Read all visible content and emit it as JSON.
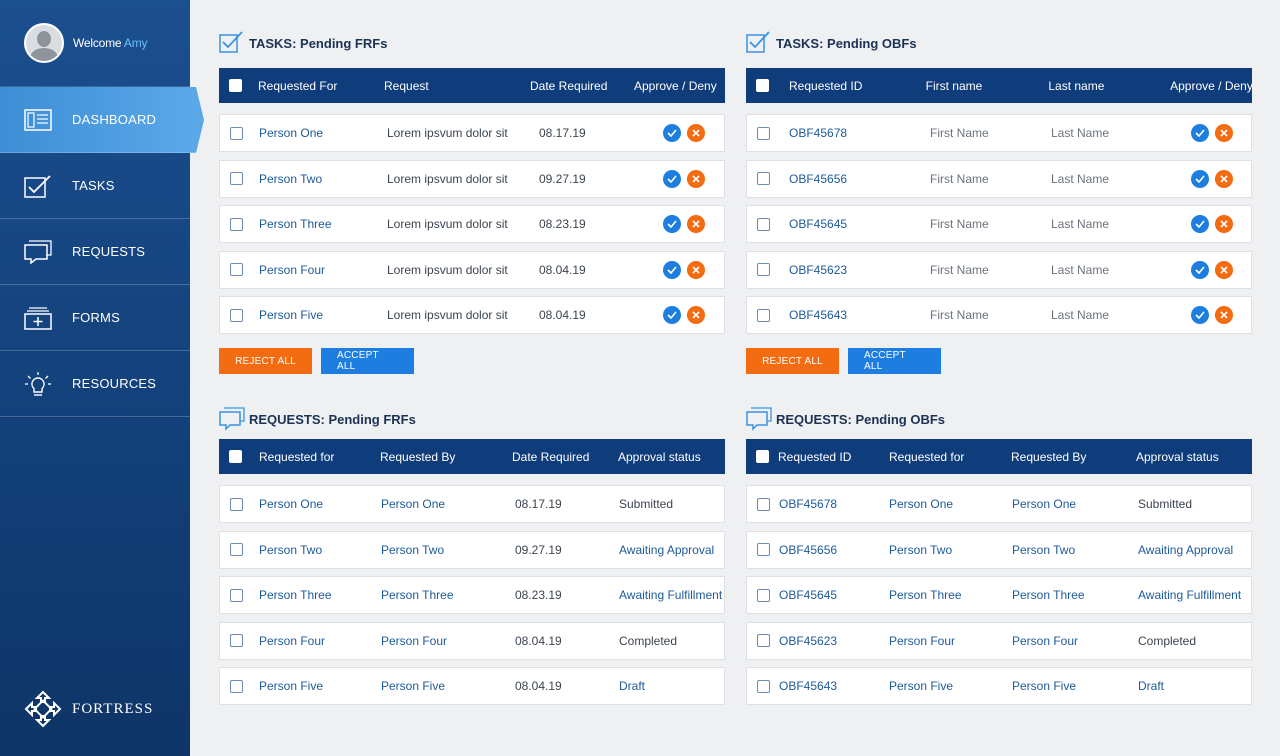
{
  "user": {
    "welcome": "Welcome",
    "name": "Amy"
  },
  "nav": [
    {
      "label": "DASHBOARD",
      "icon": "dashboard-icon",
      "active": true
    },
    {
      "label": "TASKS",
      "icon": "tasks-icon"
    },
    {
      "label": "REQUESTS",
      "icon": "requests-icon"
    },
    {
      "label": "FORMS",
      "icon": "forms-icon"
    },
    {
      "label": "RESOURCES",
      "icon": "lightbulb-icon"
    }
  ],
  "brand": "FORTRESS",
  "tasks_frf": {
    "title": "TASKS: Pending FRFs",
    "headers": [
      "Requested For",
      "Request",
      "Date Required",
      "Approve / Deny"
    ],
    "rows": [
      [
        "Person One",
        "Lorem ipsvum dolor sit",
        "08.17.19"
      ],
      [
        "Person Two",
        "Lorem ipsvum dolor sit",
        "09.27.19"
      ],
      [
        "Person Three",
        "Lorem ipsvum dolor sit",
        "08.23.19"
      ],
      [
        "Person Four",
        "Lorem ipsvum dolor sit",
        "08.04.19"
      ],
      [
        "Person Five",
        "Lorem ipsvum dolor sit",
        "08.04.19"
      ]
    ],
    "reject_label": "REJECT ALL",
    "accept_label": "ACCEPT ALL"
  },
  "tasks_obf": {
    "title": "TASKS: Pending OBFs",
    "headers": [
      "Requested ID",
      "First name",
      "Last name",
      "Approve / Deny"
    ],
    "rows": [
      [
        "OBF45678",
        "First Name",
        "Last Name"
      ],
      [
        "OBF45656",
        "First Name",
        "Last Name"
      ],
      [
        "OBF45645",
        "First Name",
        "Last Name"
      ],
      [
        "OBF45623",
        "First Name",
        "Last Name"
      ],
      [
        "OBF45643",
        "First Name",
        "Last Name"
      ]
    ],
    "reject_label": "REJECT ALL",
    "accept_label": "ACCEPT ALL"
  },
  "requests_frf": {
    "title": "REQUESTS: Pending FRFs",
    "headers": [
      "Requested for",
      "Requested By",
      "Date Required",
      "Approval status"
    ],
    "rows": [
      [
        "Person One",
        "Person One",
        "08.17.19",
        "Submitted"
      ],
      [
        "Person Two",
        "Person Two",
        "09.27.19",
        "Awaiting Approval"
      ],
      [
        "Person Three",
        "Person Three",
        "08.23.19",
        "Awaiting Fulfillment"
      ],
      [
        "Person Four",
        "Person Four",
        "08.04.19",
        "Completed"
      ],
      [
        "Person Five",
        "Person Five",
        "08.04.19",
        "Draft"
      ]
    ]
  },
  "requests_obf": {
    "title": "REQUESTS: Pending OBFs",
    "headers": [
      "Requested ID",
      "Requested for",
      "Requested By",
      "Approval status"
    ],
    "rows": [
      [
        "OBF45678",
        "Person One",
        "Person One",
        "Submitted"
      ],
      [
        "OBF45656",
        "Person Two",
        "Person Two",
        "Awaiting Approval"
      ],
      [
        "OBF45645",
        "Person Three",
        "Person Three",
        "Awaiting Fulfillment"
      ],
      [
        "OBF45623",
        "Person Four",
        "Person Four",
        "Completed"
      ],
      [
        "OBF45643",
        "Person Five",
        "Person Five",
        "Draft"
      ]
    ]
  },
  "colors": {
    "sidebar": "#123f78",
    "header": "#0f3c7a",
    "accept": "#1d7ee0",
    "reject": "#f36c12",
    "link": "#1d5a99"
  }
}
